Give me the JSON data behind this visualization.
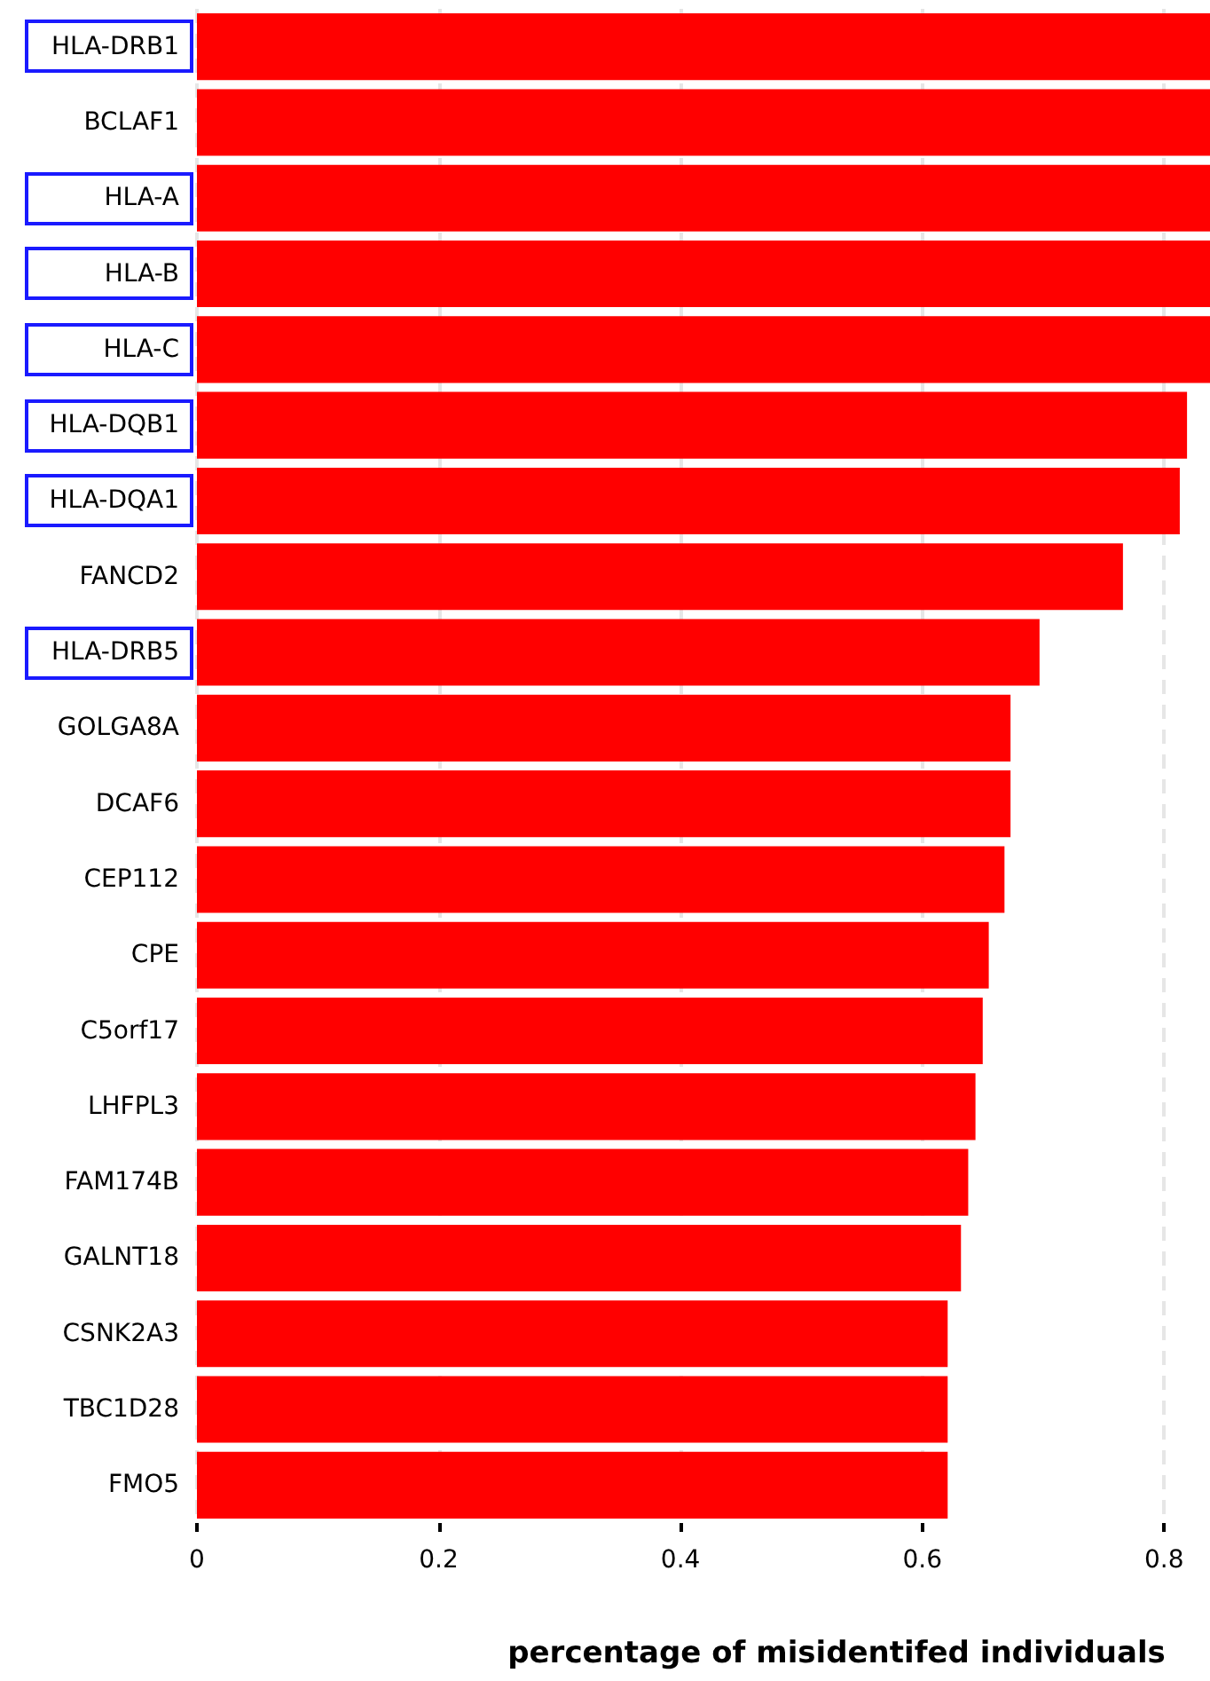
{
  "chart_data": {
    "type": "bar",
    "orientation": "horizontal",
    "xlabel": "percentage of misidentifed individuals",
    "categories": [
      "HLA-DRB1",
      "BCLAF1",
      "HLA-A",
      "HLA-B",
      "HLA-C",
      "HLA-DQB1",
      "HLA-DQA1",
      "FANCD2",
      "HLA-DRB5",
      "GOLGA8A",
      "DCAF6",
      "CEP112",
      "CPE",
      "C5orf17",
      "LHFPL3",
      "FAM174B",
      "GALNT18",
      "CSNK2A3",
      "TBC1D28",
      "FMO5"
    ],
    "values": [
      0.838,
      0.838,
      0.838,
      0.838,
      0.838,
      0.819,
      0.813,
      0.766,
      0.697,
      0.673,
      0.673,
      0.668,
      0.655,
      0.65,
      0.644,
      0.638,
      0.632,
      0.621,
      0.621,
      0.621
    ],
    "color": "#ff0000",
    "xlim": [
      0,
      0.838
    ],
    "xticks": [
      0,
      0.2,
      0.4,
      0.6,
      0.8
    ],
    "grid": "x"
  }
}
